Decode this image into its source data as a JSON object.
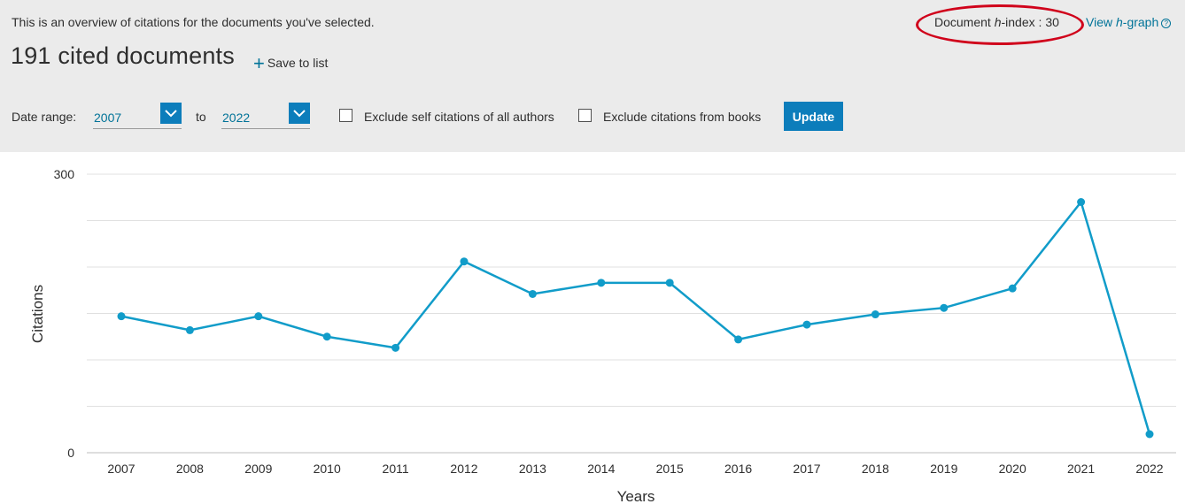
{
  "header": {
    "overview_text": "This is an overview of citations for the documents you've selected.",
    "hindex_prefix": "Document ",
    "hindex_h": "h",
    "hindex_suffix": "-index : ",
    "hindex_value": "30",
    "view_prefix": "View ",
    "view_h": "h",
    "view_suffix": "-graph",
    "help_glyph": "?",
    "title": "191 cited documents",
    "save_plus": "+",
    "save_label": "Save to list"
  },
  "filters": {
    "date_range_label": "Date range:",
    "from_year": "2007",
    "to_label": "to",
    "to_year": "2022",
    "exclude_self_label": "Exclude self citations of all authors",
    "exclude_books_label": "Exclude citations from books",
    "update_label": "Update"
  },
  "colors": {
    "accent": "#0c7dbb",
    "line": "#119cc9",
    "annotation": "#d0021b"
  },
  "chart_data": {
    "type": "line",
    "x": [
      "2007",
      "2008",
      "2009",
      "2010",
      "2011",
      "2012",
      "2013",
      "2014",
      "2015",
      "2016",
      "2017",
      "2018",
      "2019",
      "2020",
      "2021",
      "2022"
    ],
    "series": [
      {
        "values": [
          147,
          132,
          147,
          125,
          113,
          206,
          171,
          183,
          183,
          122,
          138,
          149,
          156,
          177,
          270,
          20
        ]
      }
    ],
    "xlabel": "Years",
    "ylabel": "Citations",
    "ylim": [
      0,
      300
    ],
    "yticks": [
      "0",
      "300"
    ],
    "gridlines": 6,
    "grid": true
  }
}
